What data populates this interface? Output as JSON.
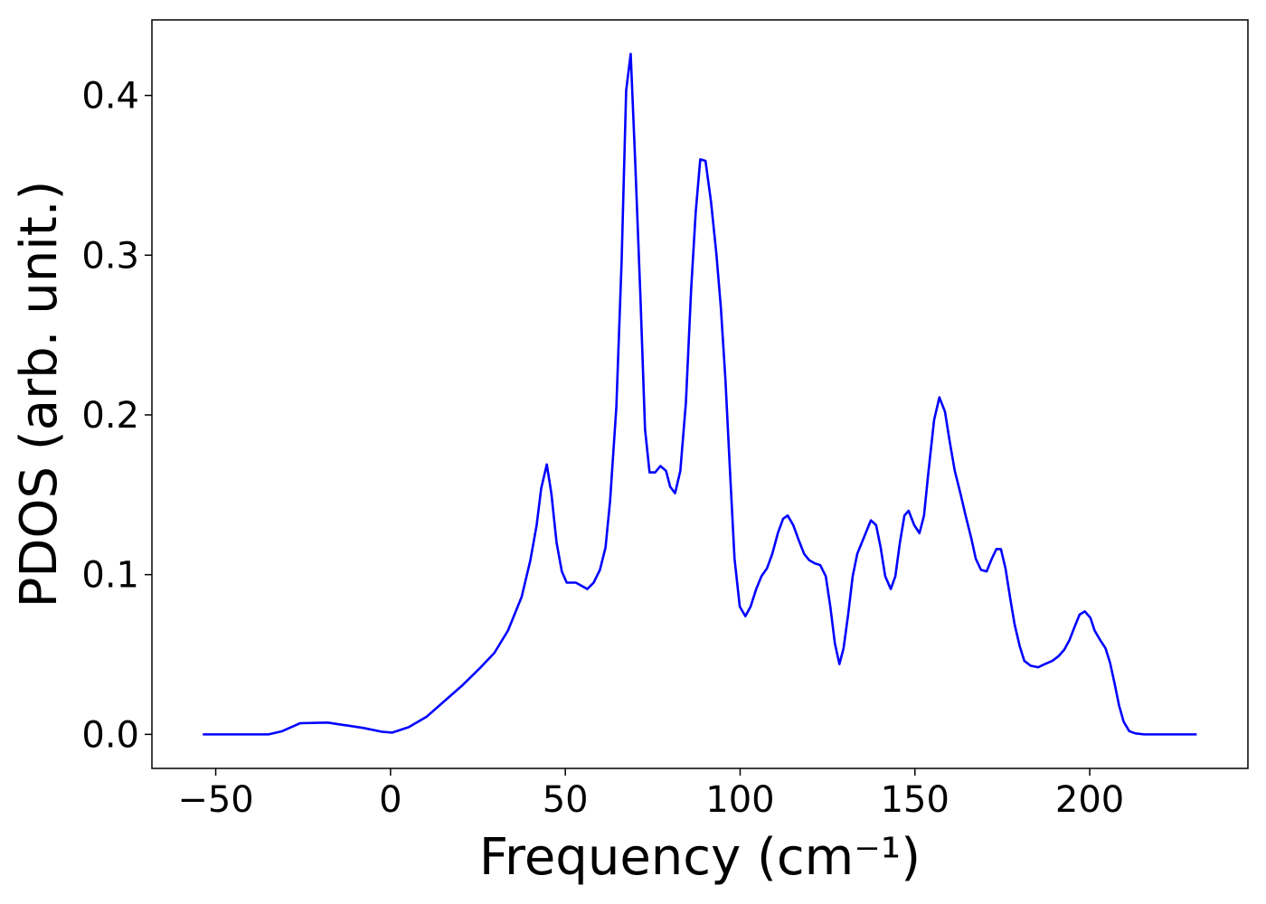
{
  "chart_data": {
    "type": "line",
    "x_label": "Frequency (cm⁻¹)",
    "y_label": "PDOS (arb. unit.)",
    "xlim": [
      -68.25,
      245.25
    ],
    "ylim": [
      -0.0213,
      0.4473
    ],
    "xticks": [
      {
        "value": -50,
        "label": "−50"
      },
      0,
      50,
      100,
      150,
      200
    ],
    "yticks": [
      {
        "value": 0,
        "label": "0.0"
      },
      0.1,
      0.2,
      0.3,
      0.4
    ],
    "grid": false,
    "x": [
      -53.7,
      -34.9,
      -31,
      -25.8,
      -18,
      -7.7,
      -2.6,
      0.5,
      5.2,
      10.3,
      15.5,
      20.7,
      25.8,
      29.7,
      33.6,
      37.5,
      40,
      41.8,
      43.1,
      44.7,
      46,
      47.5,
      49,
      50.4,
      53,
      56.3,
      58.1,
      59.9,
      61.5,
      62.8,
      64.6,
      66.1,
      67.4,
      68.7,
      70,
      71.5,
      72.8,
      74.1,
      75.7,
      77.2,
      78.8,
      80,
      81.4,
      82.9,
      84.5,
      86,
      87.3,
      88.6,
      90.1,
      91.7,
      93.2,
      94.5,
      95.8,
      97.1,
      98.4,
      99.9,
      101.5,
      103,
      104.6,
      106.1,
      107.7,
      109.2,
      110.8,
      112.3,
      113.6,
      115.2,
      116.7,
      118.3,
      119.8,
      121.4,
      122.9,
      124.5,
      125.8,
      127.1,
      128.4,
      129.6,
      130.9,
      132.2,
      133.5,
      134.8,
      136.1,
      137.4,
      138.9,
      140.2,
      141.5,
      143.1,
      144.4,
      145.7,
      147,
      148.2,
      149.8,
      151.3,
      152.6,
      153.9,
      155.5,
      157,
      158.6,
      159.9,
      161.4,
      163,
      164.5,
      166.1,
      167.4,
      168.9,
      170.5,
      172,
      173.3,
      174.6,
      175.9,
      177.2,
      178.5,
      180,
      181.3,
      183.1,
      185.2,
      187.2,
      189.3,
      191.1,
      192.7,
      194.2,
      195.8,
      197.1,
      198.6,
      200.2,
      201.4,
      203,
      204.5,
      205.8,
      207.1,
      208.4,
      209.7,
      211.3,
      213.1,
      215.6,
      230.6
    ],
    "series": [
      {
        "color": "#0000ff",
        "values": [
          0,
          0,
          0.002,
          0.007,
          0.0074,
          0.004,
          0.0017,
          0.0011,
          0.0045,
          0.011,
          0.021,
          0.031,
          0.042,
          0.051,
          0.065,
          0.086,
          0.109,
          0.131,
          0.154,
          0.169,
          0.151,
          0.12,
          0.102,
          0.095,
          0.095,
          0.091,
          0.095,
          0.103,
          0.117,
          0.146,
          0.205,
          0.296,
          0.403,
          0.426,
          0.358,
          0.273,
          0.191,
          0.164,
          0.164,
          0.168,
          0.165,
          0.155,
          0.151,
          0.165,
          0.208,
          0.279,
          0.327,
          0.36,
          0.359,
          0.333,
          0.301,
          0.267,
          0.222,
          0.165,
          0.11,
          0.08,
          0.074,
          0.08,
          0.091,
          0.099,
          0.104,
          0.113,
          0.126,
          0.135,
          0.137,
          0.131,
          0.122,
          0.113,
          0.109,
          0.107,
          0.106,
          0.099,
          0.08,
          0.057,
          0.044,
          0.054,
          0.075,
          0.099,
          0.113,
          0.12,
          0.127,
          0.134,
          0.131,
          0.117,
          0.099,
          0.091,
          0.099,
          0.12,
          0.137,
          0.14,
          0.131,
          0.126,
          0.137,
          0.165,
          0.197,
          0.211,
          0.202,
          0.184,
          0.165,
          0.151,
          0.137,
          0.123,
          0.11,
          0.103,
          0.102,
          0.11,
          0.116,
          0.116,
          0.104,
          0.086,
          0.069,
          0.055,
          0.046,
          0.043,
          0.042,
          0.044,
          0.046,
          0.049,
          0.053,
          0.059,
          0.068,
          0.075,
          0.077,
          0.073,
          0.065,
          0.059,
          0.054,
          0.045,
          0.032,
          0.018,
          0.008,
          0.002,
          0.0006,
          0,
          0
        ]
      }
    ]
  }
}
